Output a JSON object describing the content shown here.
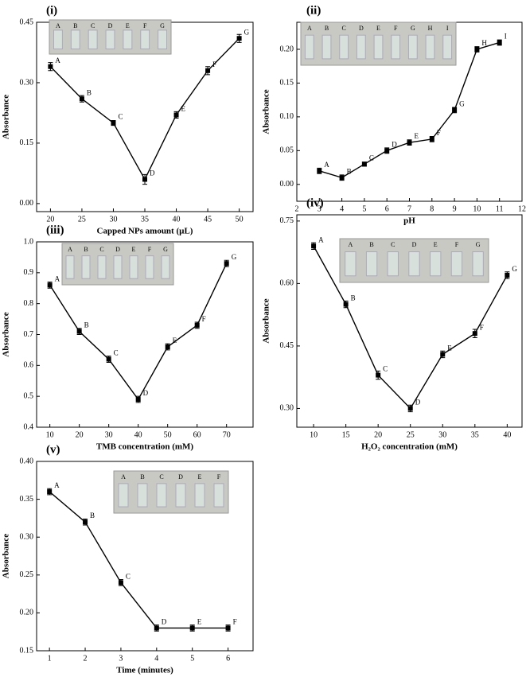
{
  "chart_data": [
    {
      "type": "line",
      "panel_label": "(i)",
      "xlabel": "Capped NPs amount (µL)",
      "ylabel": "Absorbance",
      "x": [
        20,
        25,
        30,
        35,
        40,
        45,
        50
      ],
      "series": [
        {
          "color": "#000000",
          "values": [
            0.34,
            0.26,
            0.2,
            0.06,
            0.22,
            0.33,
            0.41
          ],
          "errors": [
            0.01,
            0.008,
            0.006,
            0.012,
            0.008,
            0.01,
            0.01
          ]
        }
      ],
      "point_labels": [
        "A",
        "B",
        "C",
        "D",
        "E",
        "F",
        "G"
      ],
      "inset_labels": [
        "A",
        "B",
        "C",
        "D",
        "E",
        "F",
        "G"
      ],
      "xlim": [
        17.8,
        52.2
      ],
      "ylim": [
        -0.02,
        0.45
      ],
      "xticks": [
        20,
        25,
        30,
        35,
        40,
        45,
        50
      ],
      "yticks": [
        {
          "value": 0,
          "label": "0.00"
        },
        0.15,
        {
          "value": 0.3,
          "label": "0.30"
        },
        0.45
      ]
    },
    {
      "type": "line",
      "panel_label": "(ii)",
      "xlabel": "pH",
      "ylabel": "Absorbance",
      "x": [
        3,
        4,
        5,
        6,
        7,
        8,
        9,
        10,
        11
      ],
      "series": [
        {
          "color": "#000000",
          "values": [
            0.02,
            0.01,
            0.03,
            0.05,
            0.062,
            0.067,
            0.11,
            0.2,
            0.21
          ],
          "errors": [
            0.004,
            0.004,
            0.003,
            0.004,
            0.004,
            0.004,
            0.004,
            0.004,
            0.004
          ]
        }
      ],
      "point_labels": [
        "A",
        "B",
        "C",
        "D",
        "E",
        "F",
        "G",
        "H",
        "I"
      ],
      "inset_labels": [
        "A",
        "B",
        "C",
        "D",
        "E",
        "F",
        "G",
        "H",
        "I"
      ],
      "xlim": [
        2,
        12
      ],
      "ylim": [
        -0.025,
        0.24
      ],
      "xticks": [
        2,
        3,
        4,
        5,
        6,
        7,
        8,
        9,
        10,
        11,
        12
      ],
      "yticks": [
        {
          "value": 0,
          "label": "0.00"
        },
        0.05,
        {
          "value": 0.1,
          "label": "0.10"
        },
        0.15,
        {
          "value": 0.2,
          "label": "0.20"
        }
      ]
    },
    {
      "type": "line",
      "panel_label": "(iii)",
      "xlabel": "TMB concentration (mM)",
      "ylabel": "Absorbance",
      "x": [
        10,
        20,
        30,
        40,
        50,
        60,
        70
      ],
      "series": [
        {
          "color": "#000000",
          "values": [
            0.86,
            0.71,
            0.62,
            0.49,
            0.66,
            0.73,
            0.93
          ],
          "errors": [
            0.01,
            0.01,
            0.01,
            0.01,
            0.01,
            0.01,
            0.01
          ]
        }
      ],
      "point_labels": [
        "A",
        "B",
        "C",
        "D",
        "E",
        "F",
        "G"
      ],
      "inset_labels": [
        "A",
        "B",
        "C",
        "D",
        "E",
        "F",
        "G"
      ],
      "xlim": [
        5.5,
        79
      ],
      "ylim": [
        0.4,
        1.0
      ],
      "xticks": [
        10,
        20,
        30,
        40,
        50,
        60,
        70
      ],
      "yticks": [
        0.4,
        0.5,
        0.6,
        0.7,
        0.8,
        0.9,
        {
          "value": 1,
          "label": "1.0"
        }
      ]
    },
    {
      "type": "line",
      "panel_label": "(iv)",
      "xlabel": "H₂O₂ concentration (mM)",
      "ylabel": "Absorbance",
      "x": [
        10,
        15,
        20,
        25,
        30,
        35,
        40
      ],
      "series": [
        {
          "color": "#000000",
          "values": [
            0.69,
            0.55,
            0.38,
            0.3,
            0.43,
            0.48,
            0.62
          ],
          "errors": [
            0.008,
            0.008,
            0.01,
            0.008,
            0.008,
            0.01,
            0.008
          ]
        }
      ],
      "point_labels": [
        "A",
        "B",
        "C",
        "D",
        "E",
        "F",
        "G"
      ],
      "inset_labels": [
        "A",
        "B",
        "C",
        "D",
        "E",
        "F",
        "G"
      ],
      "xlim": [
        7.4,
        42.3
      ],
      "ylim": [
        0.255,
        0.765
      ],
      "xticks": [
        10,
        15,
        20,
        25,
        30,
        35,
        40
      ],
      "yticks": [
        {
          "value": 0.3,
          "label": "0.30"
        },
        0.45,
        {
          "value": 0.6,
          "label": "0.60"
        },
        0.75
      ]
    },
    {
      "type": "line",
      "panel_label": "(v)",
      "xlabel": "Time (minutes)",
      "ylabel": "Absorbance",
      "x": [
        1,
        2,
        3,
        4,
        5,
        6
      ],
      "series": [
        {
          "color": "#000000",
          "values": [
            0.36,
            0.32,
            0.24,
            0.18,
            0.18,
            0.18
          ],
          "errors": [
            0.004,
            0.004,
            0.004,
            0.004,
            0.004,
            0.004
          ]
        }
      ],
      "point_labels": [
        "A",
        "B",
        "C",
        "D",
        "E",
        "F"
      ],
      "inset_labels": [
        "A",
        "B",
        "C",
        "D",
        "E",
        "F"
      ],
      "xlim": [
        0.64,
        6.7
      ],
      "ylim": [
        0.15,
        0.4
      ],
      "xticks": [
        1,
        2,
        3,
        4,
        5,
        6
      ],
      "yticks": [
        0.15,
        {
          "value": 0.2,
          "label": "0.20"
        },
        0.25,
        {
          "value": 0.3,
          "label": "0.30"
        },
        0.35,
        {
          "value": 0.4,
          "label": "0.40"
        }
      ]
    }
  ]
}
